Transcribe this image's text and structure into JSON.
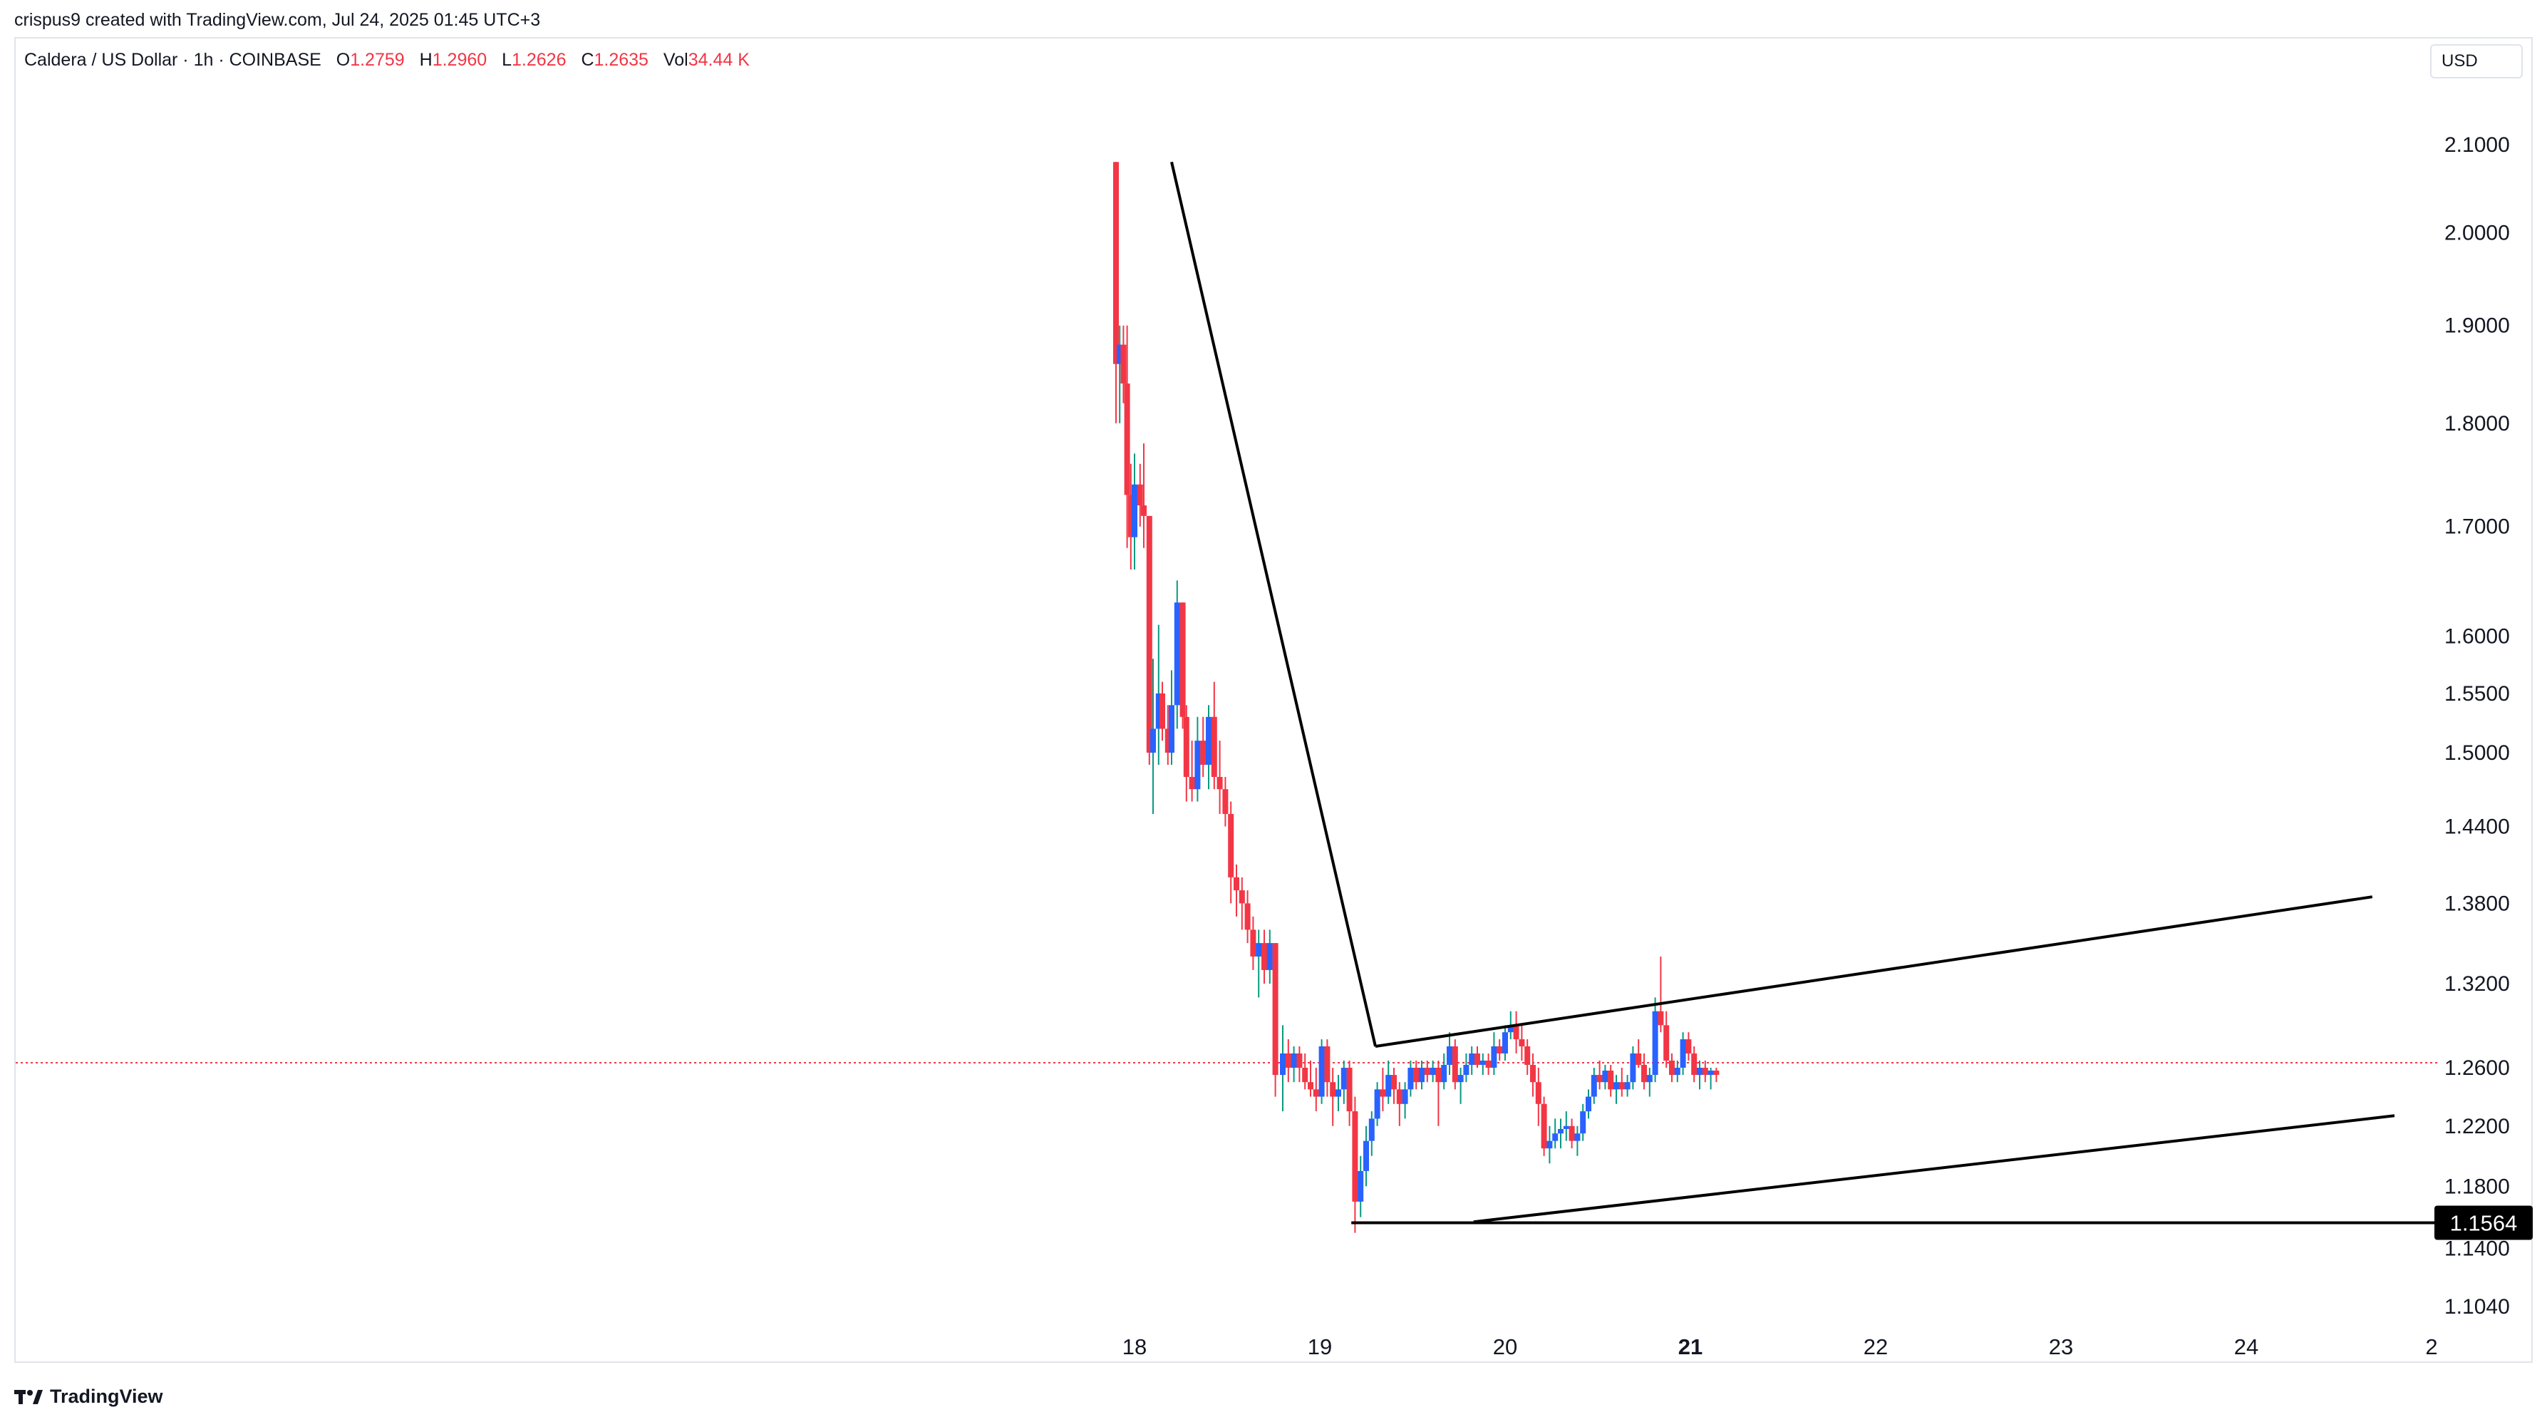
{
  "caption": "crispus9 created with TradingView.com, Jul 24, 2025 01:45 UTC+3",
  "symbol": "Caldera / US Dollar · 1h · COINBASE",
  "ohlc": {
    "o_label": "O",
    "o": "1.2759",
    "h_label": "H",
    "h": "1.2960",
    "l_label": "L",
    "l": "1.2626",
    "c_label": "C",
    "c": "1.2635",
    "vol_label": "Vol",
    "vol": "34.44 K"
  },
  "currency": "USD",
  "branding": "TradingView",
  "colors": {
    "up": "#089981",
    "down": "#f23645",
    "upBody": "#2962ff",
    "line": "#000000",
    "current": "#f23645"
  },
  "chart_data": {
    "type": "candlestick",
    "x_tick_labels": [
      "18",
      "19",
      "20",
      "21",
      "22",
      "23",
      "24",
      "2"
    ],
    "x_tick_bold": [
      "21"
    ],
    "y_tick_labels": [
      "2.1000",
      "2.0000",
      "1.9000",
      "1.8000",
      "1.7000",
      "1.6000",
      "1.5500",
      "1.5000",
      "1.4400",
      "1.3800",
      "1.3200",
      "1.2600",
      "1.2200",
      "1.1800",
      "1.1400",
      "1.1040"
    ],
    "y_scale": "log",
    "y_range": [
      1.09,
      2.18
    ],
    "last_price": 1.2635,
    "support_label": "1.1564",
    "support_level": 1.1564,
    "trendlines": [
      {
        "name": "falling-trendline",
        "x1": 18.2,
        "y1": 2.08,
        "x2": 19.3,
        "y2": 1.275
      },
      {
        "name": "channel-upper",
        "x1": 19.3,
        "y1": 1.275,
        "x2": 24.68,
        "y2": 1.385
      },
      {
        "name": "channel-lower",
        "x1": 19.83,
        "y1": 1.157,
        "x2": 24.8,
        "y2": 1.227
      },
      {
        "name": "support-line",
        "x1": 19.17,
        "y1": 1.1564,
        "x2": 25.05,
        "y2": 1.1564
      }
    ],
    "candles": [
      [
        17.9,
        2.08,
        2.08,
        1.8,
        1.86
      ],
      [
        17.92,
        1.86,
        1.9,
        1.8,
        1.88
      ],
      [
        17.94,
        1.88,
        1.9,
        1.82,
        1.84
      ],
      [
        17.96,
        1.84,
        1.9,
        1.68,
        1.73
      ],
      [
        17.98,
        1.73,
        1.76,
        1.66,
        1.69
      ],
      [
        18.0,
        1.69,
        1.77,
        1.66,
        1.74
      ],
      [
        18.03,
        1.74,
        1.76,
        1.7,
        1.72
      ],
      [
        18.05,
        1.72,
        1.78,
        1.68,
        1.71
      ],
      [
        18.08,
        1.71,
        1.71,
        1.49,
        1.5
      ],
      [
        18.1,
        1.5,
        1.58,
        1.45,
        1.52
      ],
      [
        18.13,
        1.52,
        1.61,
        1.49,
        1.55
      ],
      [
        18.15,
        1.55,
        1.56,
        1.51,
        1.52
      ],
      [
        18.18,
        1.52,
        1.54,
        1.49,
        1.5
      ],
      [
        18.2,
        1.5,
        1.57,
        1.49,
        1.54
      ],
      [
        18.23,
        1.54,
        1.65,
        1.52,
        1.63
      ],
      [
        18.26,
        1.63,
        1.63,
        1.52,
        1.53
      ],
      [
        18.28,
        1.53,
        1.54,
        1.46,
        1.48
      ],
      [
        18.31,
        1.48,
        1.51,
        1.46,
        1.47
      ],
      [
        18.34,
        1.47,
        1.53,
        1.46,
        1.51
      ],
      [
        18.37,
        1.51,
        1.53,
        1.48,
        1.49
      ],
      [
        18.4,
        1.49,
        1.54,
        1.47,
        1.53
      ],
      [
        18.43,
        1.53,
        1.56,
        1.47,
        1.48
      ],
      [
        18.46,
        1.48,
        1.51,
        1.45,
        1.47
      ],
      [
        18.49,
        1.47,
        1.48,
        1.44,
        1.45
      ],
      [
        18.52,
        1.45,
        1.46,
        1.38,
        1.4
      ],
      [
        18.55,
        1.4,
        1.41,
        1.37,
        1.39
      ],
      [
        18.58,
        1.39,
        1.4,
        1.36,
        1.38
      ],
      [
        18.61,
        1.38,
        1.39,
        1.35,
        1.36
      ],
      [
        18.64,
        1.36,
        1.37,
        1.33,
        1.34
      ],
      [
        18.67,
        1.34,
        1.36,
        1.31,
        1.35
      ],
      [
        18.7,
        1.35,
        1.36,
        1.32,
        1.33
      ],
      [
        18.73,
        1.33,
        1.36,
        1.32,
        1.35
      ],
      [
        18.76,
        1.35,
        1.35,
        1.24,
        1.255
      ],
      [
        18.8,
        1.255,
        1.29,
        1.23,
        1.27
      ],
      [
        18.83,
        1.27,
        1.28,
        1.25,
        1.26
      ],
      [
        18.86,
        1.26,
        1.275,
        1.25,
        1.27
      ],
      [
        18.89,
        1.27,
        1.275,
        1.25,
        1.26
      ],
      [
        18.92,
        1.26,
        1.27,
        1.245,
        1.25
      ],
      [
        18.95,
        1.25,
        1.265,
        1.24,
        1.245
      ],
      [
        18.98,
        1.245,
        1.26,
        1.23,
        1.24
      ],
      [
        19.01,
        1.24,
        1.28,
        1.235,
        1.275
      ],
      [
        19.04,
        1.275,
        1.28,
        1.24,
        1.25
      ],
      [
        19.07,
        1.25,
        1.26,
        1.22,
        1.24
      ],
      [
        19.1,
        1.24,
        1.255,
        1.23,
        1.245
      ],
      [
        19.13,
        1.245,
        1.265,
        1.235,
        1.26
      ],
      [
        19.16,
        1.26,
        1.265,
        1.22,
        1.23
      ],
      [
        19.19,
        1.23,
        1.24,
        1.15,
        1.17
      ],
      [
        19.22,
        1.17,
        1.2,
        1.16,
        1.19
      ],
      [
        19.25,
        1.19,
        1.22,
        1.18,
        1.21
      ],
      [
        19.28,
        1.21,
        1.23,
        1.2,
        1.225
      ],
      [
        19.31,
        1.225,
        1.25,
        1.22,
        1.245
      ],
      [
        19.34,
        1.245,
        1.26,
        1.23,
        1.24
      ],
      [
        19.37,
        1.24,
        1.265,
        1.235,
        1.255
      ],
      [
        19.4,
        1.255,
        1.26,
        1.235,
        1.245
      ],
      [
        19.43,
        1.245,
        1.25,
        1.22,
        1.235
      ],
      [
        19.46,
        1.235,
        1.25,
        1.225,
        1.245
      ],
      [
        19.49,
        1.245,
        1.265,
        1.24,
        1.26
      ],
      [
        19.52,
        1.26,
        1.265,
        1.245,
        1.25
      ],
      [
        19.55,
        1.25,
        1.265,
        1.245,
        1.26
      ],
      [
        19.58,
        1.26,
        1.265,
        1.25,
        1.255
      ],
      [
        19.61,
        1.255,
        1.265,
        1.25,
        1.26
      ],
      [
        19.64,
        1.26,
        1.265,
        1.22,
        1.25
      ],
      [
        19.67,
        1.25,
        1.27,
        1.245,
        1.262
      ],
      [
        19.7,
        1.262,
        1.285,
        1.255,
        1.275
      ],
      [
        19.73,
        1.275,
        1.28,
        1.245,
        1.25
      ],
      [
        19.76,
        1.25,
        1.26,
        1.235,
        1.255
      ],
      [
        19.79,
        1.255,
        1.27,
        1.25,
        1.262
      ],
      [
        19.82,
        1.262,
        1.275,
        1.255,
        1.27
      ],
      [
        19.85,
        1.27,
        1.275,
        1.26,
        1.262
      ],
      [
        19.88,
        1.262,
        1.27,
        1.255,
        1.265
      ],
      [
        19.91,
        1.265,
        1.27,
        1.255,
        1.26
      ],
      [
        19.94,
        1.26,
        1.285,
        1.255,
        1.275
      ],
      [
        19.97,
        1.275,
        1.28,
        1.265,
        1.27
      ],
      [
        20.0,
        1.27,
        1.29,
        1.265,
        1.285
      ],
      [
        20.03,
        1.285,
        1.3,
        1.28,
        1.29
      ],
      [
        20.06,
        1.29,
        1.3,
        1.27,
        1.28
      ],
      [
        20.09,
        1.28,
        1.29,
        1.265,
        1.275
      ],
      [
        20.12,
        1.275,
        1.28,
        1.255,
        1.262
      ],
      [
        20.15,
        1.262,
        1.27,
        1.24,
        1.25
      ],
      [
        20.18,
        1.25,
        1.26,
        1.22,
        1.235
      ],
      [
        20.21,
        1.235,
        1.24,
        1.2,
        1.205
      ],
      [
        20.24,
        1.205,
        1.22,
        1.195,
        1.21
      ],
      [
        20.27,
        1.21,
        1.225,
        1.205,
        1.215
      ],
      [
        20.3,
        1.215,
        1.225,
        1.205,
        1.218
      ],
      [
        20.33,
        1.218,
        1.23,
        1.21,
        1.22
      ],
      [
        20.36,
        1.22,
        1.225,
        1.205,
        1.21
      ],
      [
        20.39,
        1.21,
        1.22,
        1.2,
        1.215
      ],
      [
        20.42,
        1.215,
        1.235,
        1.21,
        1.23
      ],
      [
        20.45,
        1.23,
        1.245,
        1.225,
        1.24
      ],
      [
        20.48,
        1.24,
        1.26,
        1.235,
        1.255
      ],
      [
        20.51,
        1.255,
        1.265,
        1.245,
        1.25
      ],
      [
        20.54,
        1.25,
        1.262,
        1.245,
        1.258
      ],
      [
        20.57,
        1.258,
        1.262,
        1.24,
        1.245
      ],
      [
        20.6,
        1.245,
        1.255,
        1.235,
        1.25
      ],
      [
        20.63,
        1.25,
        1.26,
        1.24,
        1.245
      ],
      [
        20.66,
        1.245,
        1.255,
        1.24,
        1.25
      ],
      [
        20.69,
        1.25,
        1.275,
        1.245,
        1.27
      ],
      [
        20.72,
        1.27,
        1.28,
        1.26,
        1.262
      ],
      [
        20.75,
        1.262,
        1.27,
        1.245,
        1.25
      ],
      [
        20.78,
        1.25,
        1.26,
        1.24,
        1.255
      ],
      [
        20.81,
        1.255,
        1.31,
        1.25,
        1.3
      ],
      [
        20.84,
        1.3,
        1.34,
        1.285,
        1.29
      ],
      [
        20.87,
        1.29,
        1.3,
        1.26,
        1.265
      ],
      [
        20.9,
        1.265,
        1.27,
        1.25,
        1.255
      ],
      [
        20.93,
        1.255,
        1.265,
        1.25,
        1.26
      ],
      [
        20.96,
        1.26,
        1.285,
        1.255,
        1.28
      ],
      [
        20.99,
        1.28,
        1.285,
        1.265,
        1.27
      ],
      [
        21.02,
        1.27,
        1.275,
        1.25,
        1.255
      ],
      [
        21.05,
        1.255,
        1.265,
        1.245,
        1.26
      ],
      [
        21.08,
        1.26,
        1.265,
        1.25,
        1.255
      ],
      [
        21.11,
        1.255,
        1.26,
        1.245,
        1.258
      ],
      [
        21.14,
        1.258,
        1.26,
        1.25,
        1.255
      ]
    ]
  }
}
